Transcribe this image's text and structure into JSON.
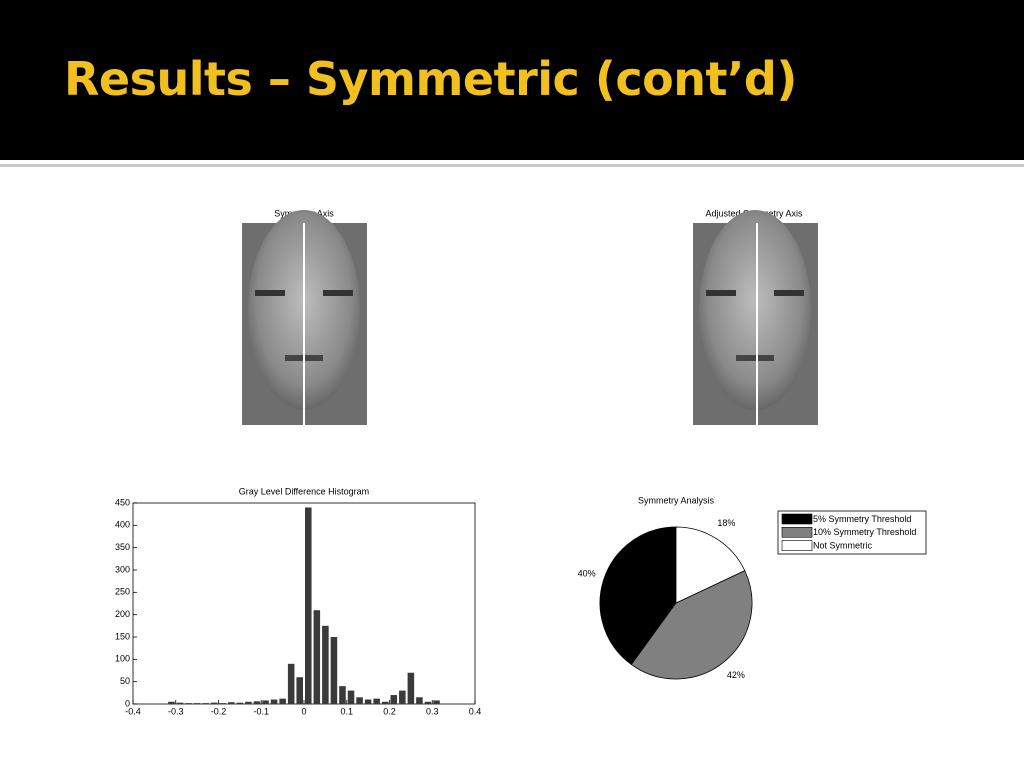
{
  "header": {
    "title": "Results – Symmetric (cont’d)"
  },
  "images": [
    {
      "title": "Symmetry Axis"
    },
    {
      "title": "Adjusted Symmetry Axis"
    }
  ],
  "chart_data": [
    {
      "type": "histogram",
      "title": "Gray Level Difference Histogram",
      "color": "#3a3a3a",
      "bins": [
        -0.32,
        -0.3,
        -0.28,
        -0.26,
        -0.24,
        -0.22,
        -0.2,
        -0.18,
        -0.16,
        -0.14,
        -0.12,
        -0.1,
        -0.08,
        -0.06,
        -0.04,
        -0.02,
        0,
        0.02,
        0.04,
        0.06,
        0.08,
        0.1,
        0.12,
        0.14,
        0.16,
        0.18,
        0.2,
        0.22,
        0.24,
        0.26,
        0.28,
        0.3,
        0.32
      ],
      "counts": [
        5,
        3,
        2,
        2,
        2,
        3,
        2,
        4,
        3,
        5,
        6,
        8,
        10,
        12,
        90,
        60,
        440,
        210,
        175,
        150,
        40,
        30,
        15,
        10,
        12,
        5,
        20,
        30,
        70,
        15,
        5,
        8
      ],
      "xlim": [
        -0.4,
        0.4
      ],
      "xticks": [
        -0.4,
        -0.3,
        -0.2,
        -0.1,
        0,
        0.1,
        0.2,
        0.3,
        0.4
      ],
      "ylim": [
        0,
        450
      ],
      "yticks": [
        0,
        50,
        100,
        150,
        200,
        250,
        300,
        350,
        400,
        450
      ]
    },
    {
      "type": "pie",
      "title": "Symmetry Analysis",
      "categories": [
        "5% Symmetry Threshold",
        "10% Symmetry Threshold",
        "Not Symmetric"
      ],
      "values": [
        40,
        42,
        18
      ],
      "value_labels": [
        "40%",
        "42%",
        "18%"
      ],
      "colors": [
        "#000000",
        "#808080",
        "#ffffff"
      ],
      "legend": "right"
    }
  ]
}
